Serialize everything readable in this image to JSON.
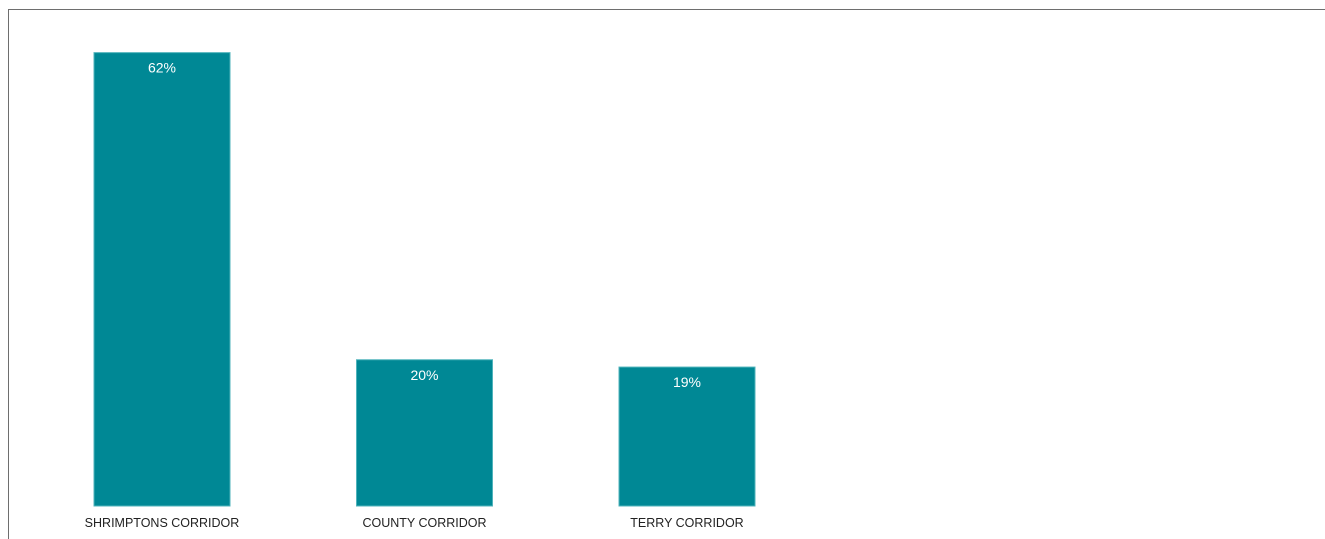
{
  "chart_data": {
    "type": "bar",
    "categories": [
      "SHRIMPTONS CORRIDOR",
      "COUNTY CORRIDOR",
      "TERRY CORRIDOR"
    ],
    "values": [
      62,
      20,
      19
    ],
    "value_labels": [
      "62%",
      "20%",
      "19%"
    ],
    "ylim": [
      0,
      64
    ],
    "grid": false,
    "legend": "none",
    "title": "",
    "xlabel": "",
    "ylabel": ""
  },
  "colors": {
    "bar_fill": "#008895",
    "bar_stroke": "#4fb3bb",
    "frame": "#6e6e6e",
    "value_text": "#ffffff",
    "category_text": "#222222"
  }
}
